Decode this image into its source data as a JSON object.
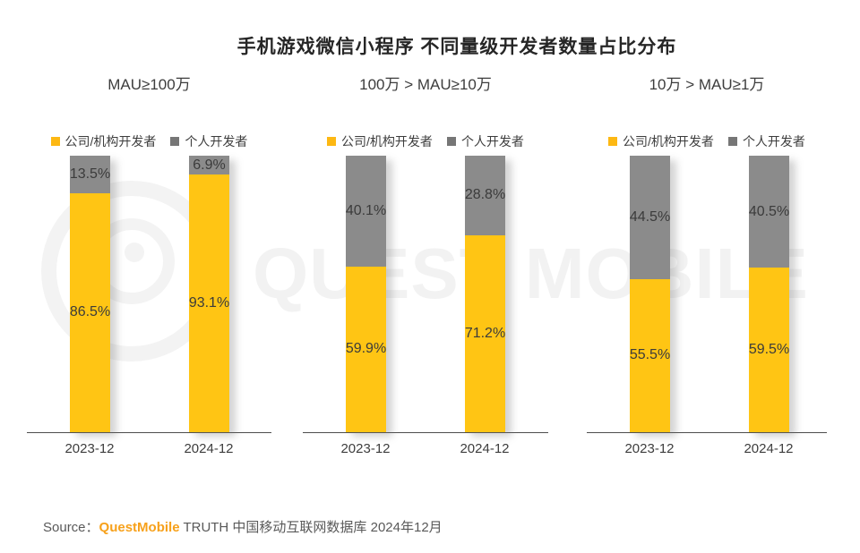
{
  "title": "手机游戏微信小程序 不同量级开发者数量占比分布",
  "watermark": {
    "logo": "questmobile-rings-logo",
    "text": "QUEST MOBILE"
  },
  "legend": {
    "company": "公司/机构开发者",
    "individual": "个人开发者"
  },
  "colors": {
    "company_yellow": "#FFC514",
    "individual_gray": "#8B8B8B",
    "brand_orange": "#F7A11B",
    "axis": "#4D4D4D",
    "watermark_gray": "#F2F2F2"
  },
  "chart_data": {
    "type": "bar",
    "stacked": true,
    "unit": "%",
    "ylim": [
      0,
      100
    ],
    "legend_position": "top",
    "series_names": [
      "公司/机构开发者",
      "个人开发者"
    ],
    "panels": [
      {
        "title": "MAU≥100万",
        "categories": [
          "2023-12",
          "2024-12"
        ],
        "series": [
          {
            "name": "公司/机构开发者",
            "values": [
              86.5,
              93.1
            ],
            "labels": [
              "86.5%",
              "93.1%"
            ]
          },
          {
            "name": "个人开发者",
            "values": [
              13.5,
              6.9
            ],
            "labels": [
              "13.5%",
              "6.9%"
            ]
          }
        ]
      },
      {
        "title": "100万 > MAU≥10万",
        "categories": [
          "2023-12",
          "2024-12"
        ],
        "series": [
          {
            "name": "公司/机构开发者",
            "values": [
              59.9,
              71.2
            ],
            "labels": [
              "59.9%",
              "71.2%"
            ]
          },
          {
            "name": "个人开发者",
            "values": [
              40.1,
              28.8
            ],
            "labels": [
              "40.1%",
              "28.8%"
            ]
          }
        ]
      },
      {
        "title": "10万 > MAU≥1万",
        "categories": [
          "2023-12",
          "2024-12"
        ],
        "series": [
          {
            "name": "公司/机构开发者",
            "values": [
              55.5,
              59.5
            ],
            "labels": [
              "55.5%",
              "59.5%"
            ]
          },
          {
            "name": "个人开发者",
            "values": [
              44.5,
              40.5
            ],
            "labels": [
              "44.5%",
              "40.5%"
            ]
          }
        ]
      }
    ]
  },
  "source": {
    "prefix": "Source：",
    "brand": "QuestMobile",
    "suffix": " TRUTH 中国移动互联网数据库 2024年12月"
  }
}
